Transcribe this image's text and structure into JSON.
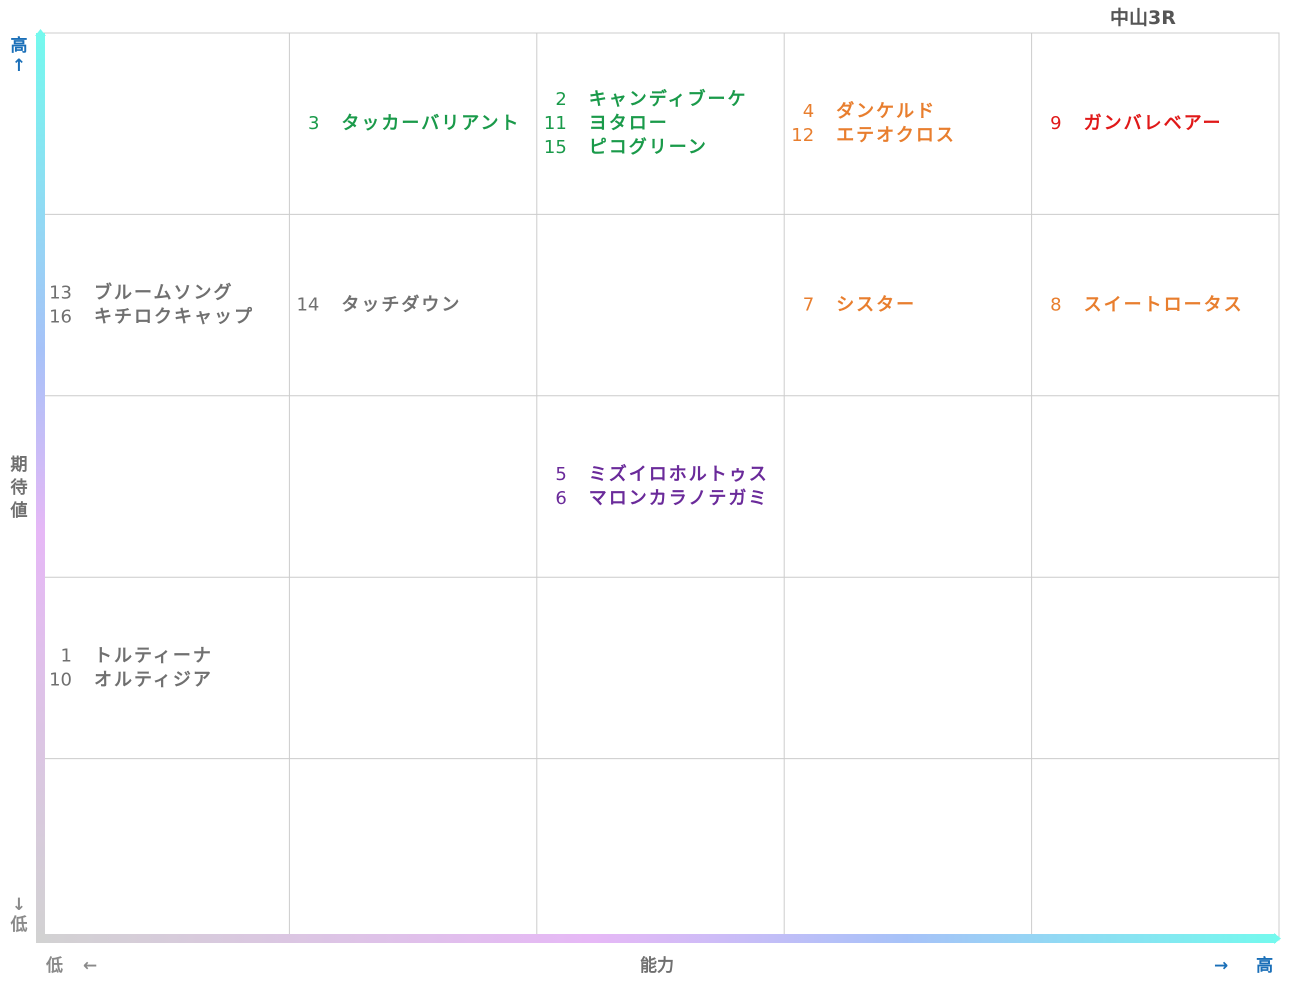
{
  "title": "中山3R",
  "y_axis": {
    "label_chars": [
      "期",
      "待",
      "値"
    ],
    "high_label": "高",
    "high_arrow": "↑",
    "low_label": "低",
    "low_arrow": "↓"
  },
  "x_axis": {
    "label": "能力",
    "low_label": "低",
    "low_arrow": "←",
    "high_label": "高",
    "high_arrow": "→"
  },
  "colors": {
    "green": "#1a9a4a",
    "orange": "#e87e2e",
    "red": "#e01818",
    "purple": "#6a2a9a",
    "gray": "#707070",
    "axis_high": "#1a6fb8",
    "axis_low": "#8a8a8a",
    "grid": "#cccccc"
  },
  "chart_data": {
    "type": "table",
    "title": "中山3R",
    "xlabel": "能力",
    "ylabel": "期待値",
    "columns": 5,
    "rows": 5,
    "cells": [
      {
        "col": 1,
        "row": 4,
        "color": "green",
        "entries": [
          {
            "num": "3",
            "name": "タッカーバリアント"
          }
        ]
      },
      {
        "col": 2,
        "row": 4,
        "color": "green",
        "entries": [
          {
            "num": "2",
            "name": "キャンディブーケ"
          },
          {
            "num": "11",
            "name": "ヨタロー"
          },
          {
            "num": "15",
            "name": "ピコグリーン"
          }
        ]
      },
      {
        "col": 3,
        "row": 4,
        "color": "orange",
        "entries": [
          {
            "num": "4",
            "name": "ダンケルド"
          },
          {
            "num": "12",
            "name": "エテオクロス"
          }
        ]
      },
      {
        "col": 4,
        "row": 4,
        "color": "red",
        "entries": [
          {
            "num": "9",
            "name": "ガンバレベアー"
          }
        ]
      },
      {
        "col": 0,
        "row": 3,
        "color": "gray",
        "entries": [
          {
            "num": "13",
            "name": "ブルームソング"
          },
          {
            "num": "16",
            "name": "キチロクキャップ"
          }
        ]
      },
      {
        "col": 1,
        "row": 3,
        "color": "gray",
        "entries": [
          {
            "num": "14",
            "name": "タッチダウン"
          }
        ]
      },
      {
        "col": 3,
        "row": 3,
        "color": "orange",
        "entries": [
          {
            "num": "7",
            "name": "シスター"
          }
        ]
      },
      {
        "col": 4,
        "row": 3,
        "color": "orange",
        "entries": [
          {
            "num": "8",
            "name": "スイートロータス"
          }
        ]
      },
      {
        "col": 2,
        "row": 2,
        "color": "purple",
        "entries": [
          {
            "num": "5",
            "name": "ミズイロホルトゥス"
          },
          {
            "num": "6",
            "name": "マロンカラノテガミ"
          }
        ]
      },
      {
        "col": 0,
        "row": 1,
        "color": "gray",
        "entries": [
          {
            "num": "1",
            "name": "トルティーナ"
          },
          {
            "num": "10",
            "name": "オルティジア"
          }
        ]
      }
    ]
  }
}
